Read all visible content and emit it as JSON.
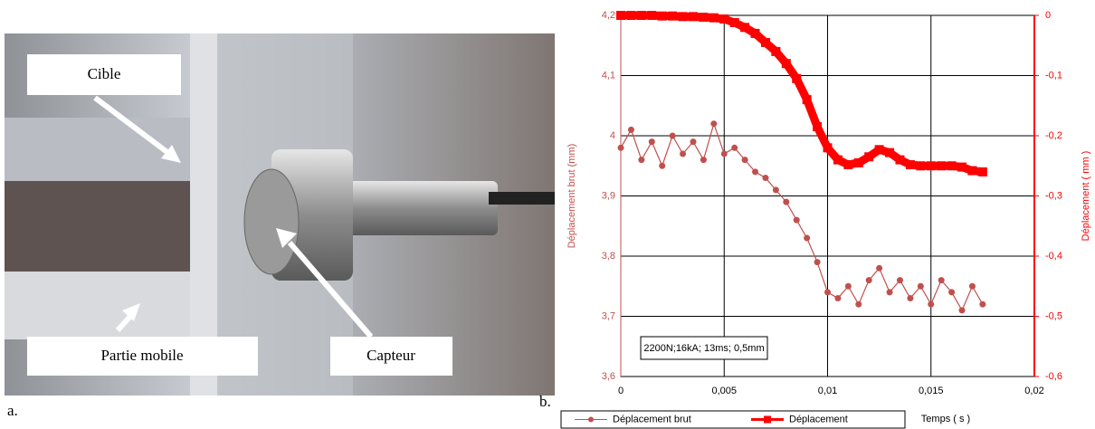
{
  "photo": {
    "labels": [
      "Cible",
      "Partie mobile",
      "Capteur"
    ],
    "panel_labels": [
      "a.",
      "b."
    ]
  },
  "chart_data": {
    "type": "line",
    "annotation": "2200N;16kA; 13ms; 0,5mm",
    "x_label": "Temps ( s )",
    "y_label": "Déplacement brut (mm)",
    "y2_label": "Déplacement ( mm )",
    "x": [
      0,
      0.0005,
      0.001,
      0.0015,
      0.002,
      0.0025,
      0.003,
      0.0035,
      0.004,
      0.0045,
      0.005,
      0.0055,
      0.006,
      0.0065,
      0.007,
      0.0075,
      0.008,
      0.0085,
      0.009,
      0.0095,
      0.01,
      0.0105,
      0.011,
      0.0115,
      0.012,
      0.0125,
      0.013,
      0.0135,
      0.014,
      0.0145,
      0.015,
      0.0155,
      0.016,
      0.0165,
      0.017,
      0.0175
    ],
    "series": [
      {
        "name": "Déplacement brut",
        "color": "#c0504d",
        "marker": "circle",
        "values": [
          3.98,
          4.01,
          3.96,
          3.99,
          3.95,
          4.0,
          3.97,
          3.99,
          3.96,
          4.02,
          3.97,
          3.98,
          3.96,
          3.94,
          3.93,
          3.91,
          3.89,
          3.86,
          3.83,
          3.79,
          3.74,
          3.73,
          3.75,
          3.72,
          3.76,
          3.78,
          3.74,
          3.76,
          3.73,
          3.75,
          3.72,
          3.76,
          3.74,
          3.71,
          3.75,
          3.72
        ]
      },
      {
        "name": "Déplacement",
        "color": "#ff0000",
        "marker": "square",
        "axis": "y2",
        "values": [
          0,
          0,
          0,
          0,
          -0.001,
          -0.001,
          -0.002,
          -0.002,
          -0.003,
          -0.004,
          -0.006,
          -0.012,
          -0.02,
          -0.03,
          -0.045,
          -0.06,
          -0.08,
          -0.105,
          -0.14,
          -0.185,
          -0.22,
          -0.24,
          -0.248,
          -0.245,
          -0.235,
          -0.223,
          -0.228,
          -0.24,
          -0.248,
          -0.25,
          -0.25,
          -0.25,
          -0.25,
          -0.252,
          -0.258,
          -0.26
        ]
      }
    ],
    "xlim": [
      0,
      0.02
    ],
    "xticks": [
      0,
      {
        "value": 0.005,
        "label": "0,005"
      },
      {
        "value": 0.01,
        "label": "0,01"
      },
      {
        "value": 0.015,
        "label": "0,015"
      },
      {
        "value": 0.02,
        "label": "0,02"
      }
    ],
    "ylim": [
      3.6,
      4.2
    ],
    "yticks": [
      {
        "value": 3.6,
        "label": "3,6"
      },
      {
        "value": 3.7,
        "label": "3,7"
      },
      {
        "value": 3.8,
        "label": "3,8"
      },
      {
        "value": 3.9,
        "label": "3,9"
      },
      {
        "value": 4,
        "label": "4"
      },
      {
        "value": 4.1,
        "label": "4,1"
      },
      {
        "value": 4.2,
        "label": "4,2"
      }
    ],
    "y2lim": [
      -0.6,
      0
    ],
    "y2ticks": [
      {
        "value": -0.6,
        "label": "-0,6"
      },
      {
        "value": -0.5,
        "label": "-0,5"
      },
      {
        "value": -0.4,
        "label": "-0,4"
      },
      {
        "value": -0.3,
        "label": "-0,3"
      },
      {
        "value": -0.2,
        "label": "-0,2"
      },
      {
        "value": -0.1,
        "label": "-0,1"
      },
      0
    ],
    "grid": true
  }
}
